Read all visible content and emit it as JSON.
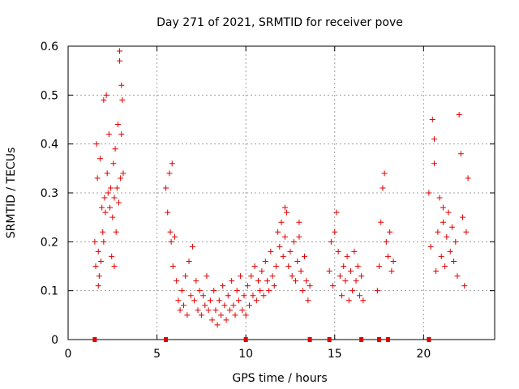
{
  "chart_data": {
    "type": "scatter",
    "title": "Day 271 of 2021, SRMTID for receiver pove",
    "xlabel": "GPS time / hours",
    "ylabel": "SRMTID / TECUs",
    "xlim": [
      0,
      24
    ],
    "ylim": [
      0,
      0.6
    ],
    "xticks": [
      0,
      5,
      10,
      15,
      20
    ],
    "xtick_labels": [
      "0",
      "5",
      "10",
      "15",
      "20"
    ],
    "yticks": [
      0,
      0.1,
      0.2,
      0.3,
      0.4,
      0.5,
      0.6
    ],
    "ytick_labels": [
      "0",
      "0.1",
      "0.2",
      "0.3",
      "0.4",
      "0.5",
      "0.6"
    ],
    "grid": true,
    "marker": "+",
    "color": "#e00000",
    "series": [
      {
        "name": "SRMTID",
        "points": [
          [
            1.5,
            0.2
          ],
          [
            1.55,
            0.15
          ],
          [
            1.6,
            0.4
          ],
          [
            1.65,
            0.33
          ],
          [
            1.7,
            0.18
          ],
          [
            1.75,
            0.13
          ],
          [
            1.8,
            0.37
          ],
          [
            1.85,
            0.16
          ],
          [
            1.9,
            0.27
          ],
          [
            1.95,
            0.22
          ],
          [
            2.0,
            0.49
          ],
          [
            2.05,
            0.29
          ],
          [
            2.1,
            0.26
          ],
          [
            2.15,
            0.5
          ],
          [
            2.2,
            0.34
          ],
          [
            2.25,
            0.3
          ],
          [
            2.3,
            0.42
          ],
          [
            2.35,
            0.27
          ],
          [
            2.4,
            0.31
          ],
          [
            2.45,
            0.17
          ],
          [
            2.5,
            0.25
          ],
          [
            2.55,
            0.36
          ],
          [
            2.6,
            0.29
          ],
          [
            2.65,
            0.39
          ],
          [
            2.7,
            0.22
          ],
          [
            2.75,
            0.31
          ],
          [
            2.8,
            0.44
          ],
          [
            2.85,
            0.28
          ],
          [
            2.9,
            0.59
          ],
          [
            2.95,
            0.33
          ],
          [
            3.0,
            0.52
          ],
          [
            3.05,
            0.49
          ],
          [
            3.1,
            0.34
          ],
          [
            1.7,
            0.11
          ],
          [
            2.0,
            0.2
          ],
          [
            2.6,
            0.15
          ],
          [
            2.9,
            0.57
          ],
          [
            3.0,
            0.42
          ],
          [
            5.5,
            0.31
          ],
          [
            5.6,
            0.26
          ],
          [
            5.7,
            0.34
          ],
          [
            5.75,
            0.22
          ],
          [
            5.8,
            0.2
          ],
          [
            5.85,
            0.36
          ],
          [
            5.9,
            0.15
          ],
          [
            6.0,
            0.21
          ],
          [
            6.1,
            0.12
          ],
          [
            6.2,
            0.08
          ],
          [
            6.3,
            0.06
          ],
          [
            6.4,
            0.1
          ],
          [
            6.5,
            0.07
          ],
          [
            6.6,
            0.13
          ],
          [
            6.7,
            0.05
          ],
          [
            6.8,
            0.16
          ],
          [
            6.9,
            0.09
          ],
          [
            7.0,
            0.19
          ],
          [
            7.1,
            0.08
          ],
          [
            7.2,
            0.12
          ],
          [
            7.3,
            0.06
          ],
          [
            7.4,
            0.1
          ],
          [
            7.5,
            0.05
          ],
          [
            7.6,
            0.09
          ],
          [
            7.7,
            0.07
          ],
          [
            7.8,
            0.13
          ],
          [
            7.9,
            0.06
          ],
          [
            8.0,
            0.08
          ],
          [
            8.1,
            0.04
          ],
          [
            8.2,
            0.1
          ],
          [
            8.3,
            0.06
          ],
          [
            8.4,
            0.03
          ],
          [
            8.5,
            0.08
          ],
          [
            8.6,
            0.05
          ],
          [
            8.7,
            0.11
          ],
          [
            8.8,
            0.07
          ],
          [
            8.9,
            0.04
          ],
          [
            9.0,
            0.09
          ],
          [
            9.1,
            0.06
          ],
          [
            9.2,
            0.12
          ],
          [
            9.3,
            0.07
          ],
          [
            9.4,
            0.05
          ],
          [
            9.5,
            0.1
          ],
          [
            9.6,
            0.08
          ],
          [
            9.7,
            0.13
          ],
          [
            9.8,
            0.06
          ],
          [
            9.9,
            0.09
          ],
          [
            10.0,
            0.05
          ],
          [
            10.1,
            0.11
          ],
          [
            10.2,
            0.07
          ],
          [
            10.3,
            0.13
          ],
          [
            10.4,
            0.09
          ],
          [
            10.5,
            0.15
          ],
          [
            10.6,
            0.08
          ],
          [
            10.7,
            0.12
          ],
          [
            10.8,
            0.1
          ],
          [
            10.9,
            0.14
          ],
          [
            11.0,
            0.09
          ],
          [
            11.1,
            0.16
          ],
          [
            11.2,
            0.12
          ],
          [
            11.3,
            0.1
          ],
          [
            11.4,
            0.18
          ],
          [
            11.5,
            0.13
          ],
          [
            11.6,
            0.11
          ],
          [
            11.7,
            0.15
          ],
          [
            11.8,
            0.22
          ],
          [
            11.9,
            0.19
          ],
          [
            12.0,
            0.24
          ],
          [
            12.1,
            0.17
          ],
          [
            12.2,
            0.21
          ],
          [
            12.3,
            0.26
          ],
          [
            12.4,
            0.15
          ],
          [
            12.5,
            0.18
          ],
          [
            12.6,
            0.13
          ],
          [
            12.7,
            0.2
          ],
          [
            12.8,
            0.12
          ],
          [
            12.9,
            0.16
          ],
          [
            13.0,
            0.21
          ],
          [
            13.1,
            0.14
          ],
          [
            13.2,
            0.1
          ],
          [
            13.3,
            0.17
          ],
          [
            13.4,
            0.12
          ],
          [
            13.5,
            0.08
          ],
          [
            13.6,
            0.11
          ],
          [
            13.0,
            0.24
          ],
          [
            12.2,
            0.27
          ],
          [
            14.7,
            0.14
          ],
          [
            14.8,
            0.2
          ],
          [
            14.9,
            0.11
          ],
          [
            15.0,
            0.22
          ],
          [
            15.1,
            0.26
          ],
          [
            15.2,
            0.18
          ],
          [
            15.3,
            0.13
          ],
          [
            15.4,
            0.09
          ],
          [
            15.5,
            0.15
          ],
          [
            15.6,
            0.12
          ],
          [
            15.7,
            0.17
          ],
          [
            15.8,
            0.08
          ],
          [
            15.9,
            0.14
          ],
          [
            16.0,
            0.1
          ],
          [
            16.1,
            0.18
          ],
          [
            16.2,
            0.12
          ],
          [
            16.3,
            0.15
          ],
          [
            16.4,
            0.09
          ],
          [
            16.5,
            0.13
          ],
          [
            16.6,
            0.08
          ],
          [
            17.4,
            0.1
          ],
          [
            17.5,
            0.15
          ],
          [
            17.6,
            0.24
          ],
          [
            17.7,
            0.31
          ],
          [
            17.8,
            0.34
          ],
          [
            17.9,
            0.2
          ],
          [
            18.0,
            0.17
          ],
          [
            18.1,
            0.22
          ],
          [
            18.2,
            0.14
          ],
          [
            18.3,
            0.16
          ],
          [
            20.3,
            0.3
          ],
          [
            20.4,
            0.19
          ],
          [
            20.5,
            0.45
          ],
          [
            20.6,
            0.41
          ],
          [
            20.7,
            0.14
          ],
          [
            20.8,
            0.22
          ],
          [
            20.9,
            0.29
          ],
          [
            21.0,
            0.17
          ],
          [
            21.1,
            0.24
          ],
          [
            21.2,
            0.15
          ],
          [
            21.3,
            0.21
          ],
          [
            21.4,
            0.26
          ],
          [
            21.5,
            0.18
          ],
          [
            21.6,
            0.23
          ],
          [
            21.7,
            0.16
          ],
          [
            21.8,
            0.2
          ],
          [
            21.9,
            0.13
          ],
          [
            22.0,
            0.46
          ],
          [
            22.1,
            0.38
          ],
          [
            22.2,
            0.25
          ],
          [
            22.3,
            0.11
          ],
          [
            22.4,
            0.22
          ],
          [
            22.5,
            0.33
          ],
          [
            20.6,
            0.36
          ],
          [
            21.1,
            0.27
          ]
        ]
      }
    ],
    "baseline_markers": [
      1.5,
      5.5,
      10.0,
      13.6,
      14.7,
      16.5,
      17.5,
      18.0,
      20.3
    ]
  }
}
